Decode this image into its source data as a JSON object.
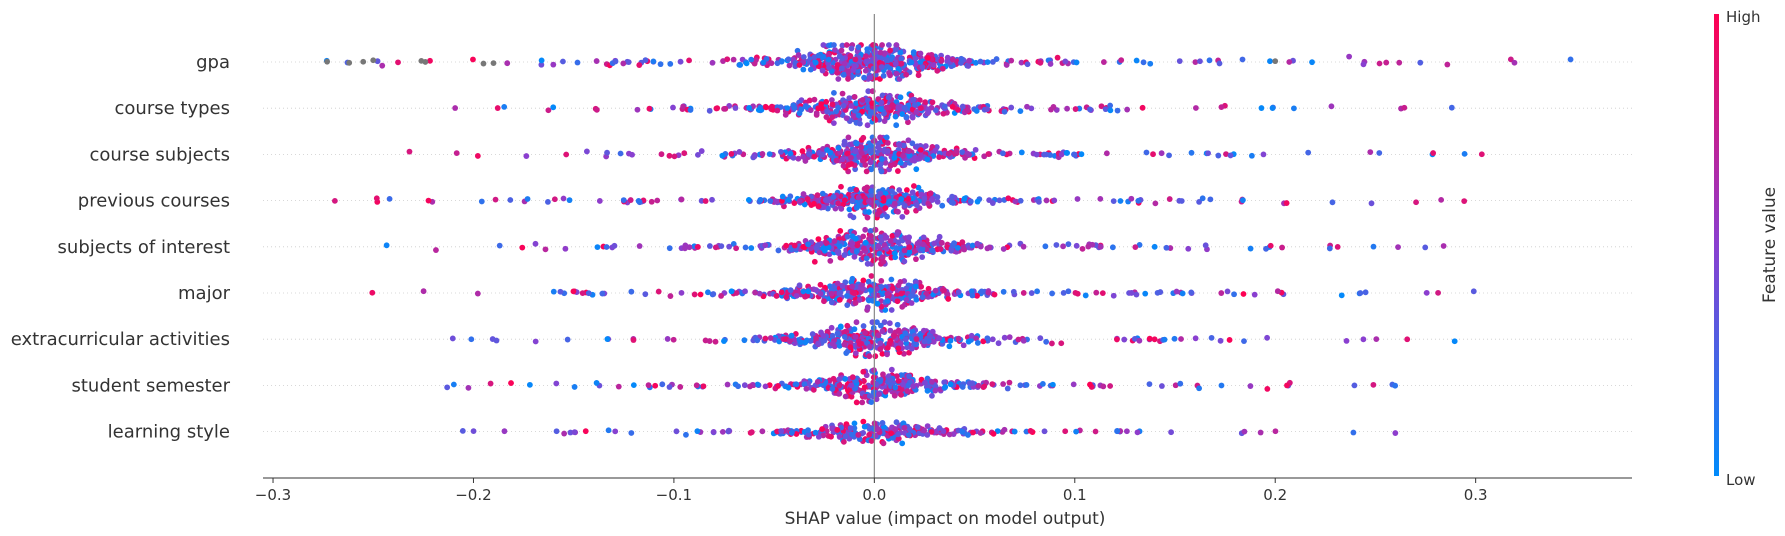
{
  "chart_data": {
    "type": "scatter",
    "subtype": "shap-beeswarm",
    "xlabel": "SHAP value (impact on model output)",
    "xlim": [
      -0.305,
      0.378
    ],
    "xticks": [
      "−0.3",
      "−0.2",
      "−0.1",
      "0.0",
      "0.1",
      "0.2",
      "0.3"
    ],
    "xtick_values": [
      -0.3,
      -0.2,
      -0.1,
      0.0,
      0.1,
      0.2,
      0.3
    ],
    "features": [
      {
        "name": "gpa",
        "min": -0.273,
        "max": 0.347,
        "width": 1.0,
        "missing_values": true
      },
      {
        "name": "course types",
        "min": -0.209,
        "max": 0.288,
        "width": 0.82
      },
      {
        "name": "course subjects",
        "min": -0.232,
        "max": 0.303,
        "width": 0.85
      },
      {
        "name": "previous courses",
        "min": -0.269,
        "max": 0.294,
        "width": 0.8
      },
      {
        "name": "subjects of interest",
        "min": -0.243,
        "max": 0.284,
        "width": 0.85
      },
      {
        "name": "major",
        "min": -0.25,
        "max": 0.299,
        "width": 0.8
      },
      {
        "name": "extracurricular activities",
        "min": -0.21,
        "max": 0.289,
        "width": 0.78
      },
      {
        "name": "student semester",
        "min": -0.213,
        "max": 0.26,
        "width": 0.72
      },
      {
        "name": "learning style",
        "min": -0.205,
        "max": 0.26,
        "width": 0.55
      }
    ],
    "colorbar": {
      "label": "Feature value",
      "high_label": "High",
      "low_label": "Low",
      "high_color": "#ff0052",
      "low_color": "#008bfb",
      "missing_color": "#777777"
    },
    "grid": "horizontal dotted per feature",
    "zero_line": true
  }
}
